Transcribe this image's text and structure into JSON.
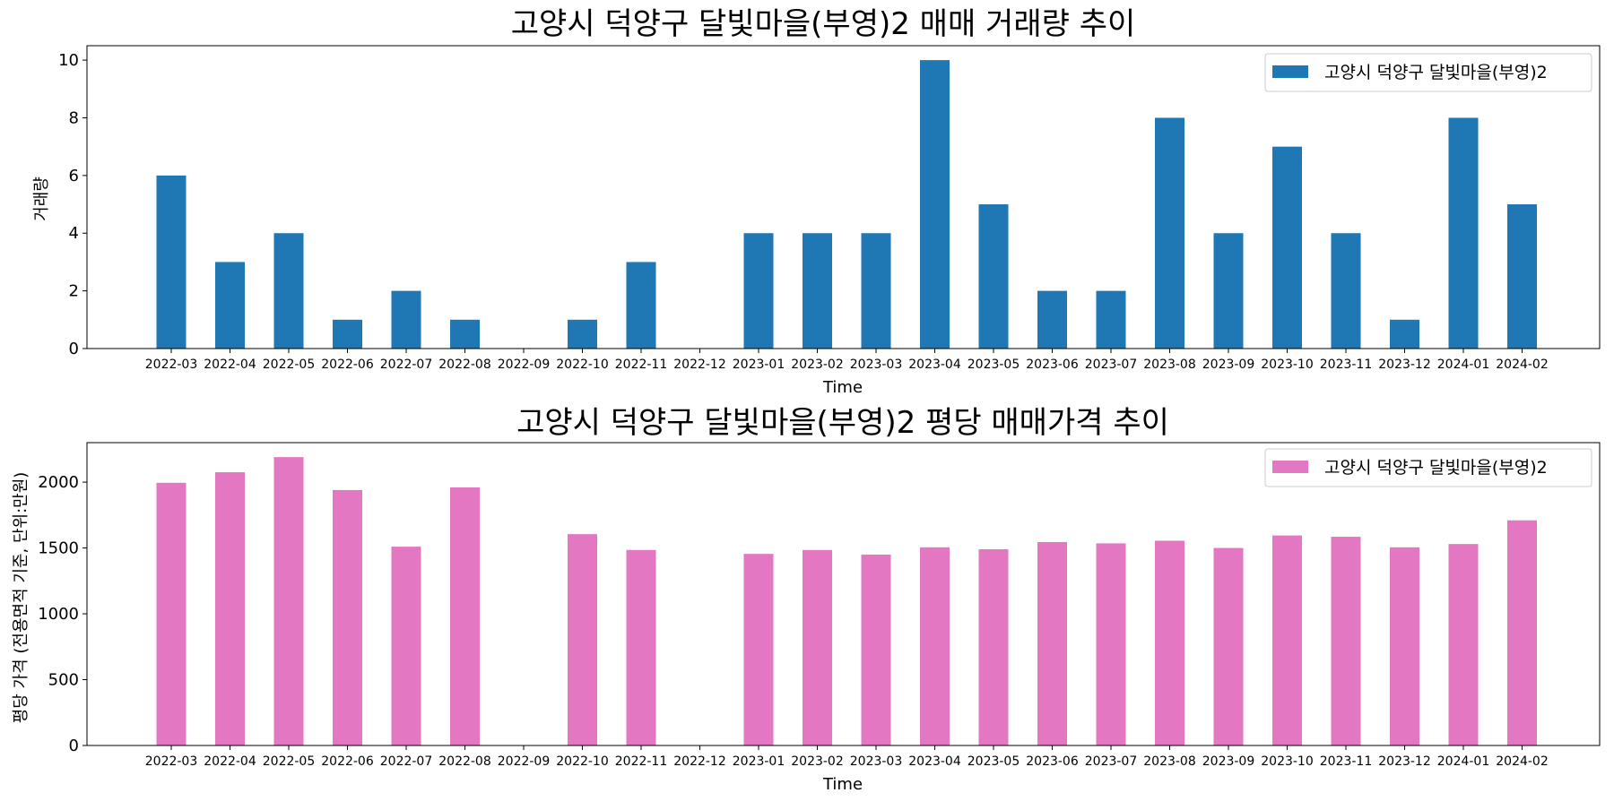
{
  "chart_data": [
    {
      "type": "bar",
      "title": "고양시 덕양구 달빛마을(부영)2 매매 거래량 추이",
      "xlabel": "Time",
      "ylabel": "거래량",
      "categories": [
        "2022-03",
        "2022-04",
        "2022-05",
        "2022-06",
        "2022-07",
        "2022-08",
        "2022-09",
        "2022-10",
        "2022-11",
        "2022-12",
        "2023-01",
        "2023-02",
        "2023-03",
        "2023-04",
        "2023-05",
        "2023-06",
        "2023-07",
        "2023-08",
        "2023-09",
        "2023-10",
        "2023-11",
        "2023-12",
        "2024-01",
        "2024-02"
      ],
      "series": [
        {
          "name": "고양시 덕양구 달빛마을(부영)2",
          "color": "#1f77b4",
          "values": [
            6,
            3,
            4,
            1,
            2,
            1,
            0,
            1,
            3,
            0,
            4,
            4,
            4,
            10,
            5,
            2,
            2,
            8,
            4,
            7,
            4,
            1,
            8,
            5
          ]
        }
      ],
      "ylim": [
        0,
        10.5
      ],
      "yticks": [
        0,
        2,
        4,
        6,
        8,
        10
      ],
      "ytick_labels": [
        "0",
        "2",
        "4",
        "6",
        "8",
        "10"
      ],
      "legend": "top-right",
      "grid": false
    },
    {
      "type": "bar",
      "title": "고양시 덕양구 달빛마을(부영)2 평당 매매가격 추이",
      "xlabel": "Time",
      "ylabel": "평당 가격 (전용면적 기준, 단위:만원)",
      "categories": [
        "2022-03",
        "2022-04",
        "2022-05",
        "2022-06",
        "2022-07",
        "2022-08",
        "2022-09",
        "2022-10",
        "2022-11",
        "2022-12",
        "2023-01",
        "2023-02",
        "2023-03",
        "2023-04",
        "2023-05",
        "2023-06",
        "2023-07",
        "2023-08",
        "2023-09",
        "2023-10",
        "2023-11",
        "2023-12",
        "2024-01",
        "2024-02"
      ],
      "series": [
        {
          "name": "고양시 덕양구 달빛마을(부영)2",
          "color": "#e377c2",
          "values": [
            1995,
            2075,
            2190,
            1940,
            1510,
            1960,
            null,
            1605,
            1485,
            null,
            1455,
            1485,
            1450,
            1505,
            1490,
            1545,
            1535,
            1555,
            1500,
            1595,
            1585,
            1505,
            1530,
            1710
          ]
        }
      ],
      "ylim": [
        0,
        2300
      ],
      "yticks": [
        0,
        500,
        1000,
        1500,
        2000
      ],
      "ytick_labels": [
        "0",
        "500",
        "1000",
        "1500",
        "2000"
      ],
      "legend": "top-right",
      "grid": false
    }
  ]
}
